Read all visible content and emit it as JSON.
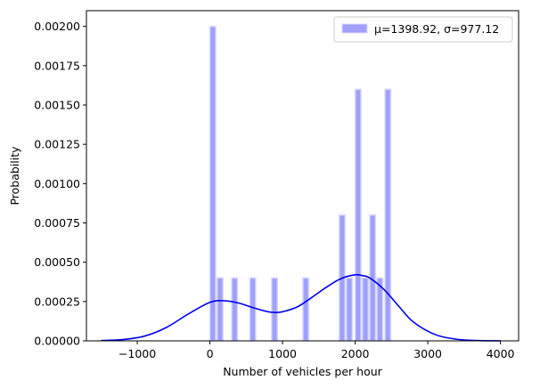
{
  "chart_data": {
    "type": "bar",
    "xlabel": "Number of vehicles per hour",
    "ylabel": "Probability",
    "xlim": [
      -1700,
      4250
    ],
    "ylim": [
      0,
      0.0021
    ],
    "xticks": [
      -1000,
      0,
      1000,
      2000,
      3000,
      4000
    ],
    "xtick_labels": [
      "−1000",
      "0",
      "1000",
      "2000",
      "3000",
      "4000"
    ],
    "yticks": [
      0,
      0.00025,
      0.0005,
      0.00075,
      0.001,
      0.00125,
      0.0015,
      0.00175,
      0.002
    ],
    "ytick_labels": [
      "0.00000",
      "0.00025",
      "0.00050",
      "0.00075",
      "0.00100",
      "0.00125",
      "0.00150",
      "0.00175",
      "0.00200"
    ],
    "grid": false,
    "legend_position": "top-right",
    "bar_color": "#a0a0fb",
    "bar_edge_color": "#d8d8fd",
    "line_color": "#0000ee",
    "histogram": {
      "legend_label": "μ=1398.92, σ=977.12",
      "bars": [
        {
          "x0": 0,
          "x1": 80,
          "value": 0.002
        },
        {
          "x0": 100,
          "x1": 180,
          "value": 0.0004
        },
        {
          "x0": 300,
          "x1": 380,
          "value": 0.0004
        },
        {
          "x0": 550,
          "x1": 630,
          "value": 0.0004
        },
        {
          "x0": 850,
          "x1": 930,
          "value": 0.0004
        },
        {
          "x0": 1280,
          "x1": 1360,
          "value": 0.0004
        },
        {
          "x0": 1780,
          "x1": 1860,
          "value": 0.0008
        },
        {
          "x0": 1880,
          "x1": 1960,
          "value": 0.0004
        },
        {
          "x0": 2000,
          "x1": 2080,
          "value": 0.0016
        },
        {
          "x0": 2100,
          "x1": 2180,
          "value": 0.0004
        },
        {
          "x0": 2200,
          "x1": 2280,
          "value": 0.0008
        },
        {
          "x0": 2300,
          "x1": 2380,
          "value": 0.0004
        },
        {
          "x0": 2410,
          "x1": 2490,
          "value": 0.0016
        }
      ]
    },
    "kde": {
      "x": [
        -1500,
        -1200,
        -900,
        -600,
        -300,
        0,
        200,
        400,
        600,
        800,
        900,
        1000,
        1200,
        1400,
        1600,
        1800,
        2000,
        2100,
        2200,
        2400,
        2600,
        2800,
        3100,
        3400,
        3700,
        4000
      ],
      "y": [
        2e-06,
        8e-06,
        3e-05,
        8.5e-05,
        0.00017,
        0.000245,
        0.000255,
        0.00024,
        0.00021,
        0.000185,
        0.00018,
        0.000185,
        0.000215,
        0.000275,
        0.00034,
        0.000395,
        0.00042,
        0.000415,
        0.0004,
        0.000325,
        0.00022,
        0.00012,
        4e-05,
        1e-05,
        2e-06,
        5e-07
      ]
    }
  }
}
